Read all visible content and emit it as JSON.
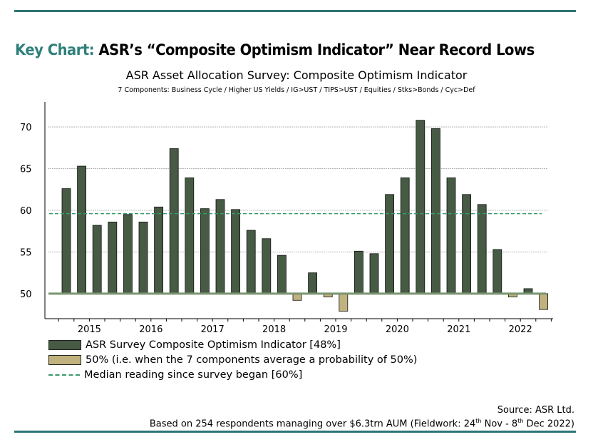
{
  "header": {
    "prefix": "Key Chart:",
    "title": "ASR’s “Composite Optimism Indicator” Near Record Lows"
  },
  "chart_data": {
    "type": "bar",
    "title": "ASR Asset Allocation Survey: Composite Optimism Indicator",
    "subtitle": "7 Components: Business Cycle / Higher US Yields / IG>UST / TIPS>UST / Equities / Stks>Bonds / Cyc>Def",
    "baseline": 50,
    "ylim": [
      47,
      73
    ],
    "yticks": [
      50,
      55,
      60,
      65,
      70
    ],
    "year_labels": [
      "2015",
      "2016",
      "2017",
      "2018",
      "2019",
      "2020",
      "2021",
      "2022"
    ],
    "bars_per_year": 4,
    "values": [
      62.6,
      65.3,
      58.2,
      58.6,
      59.5,
      58.6,
      60.4,
      67.4,
      63.9,
      60.2,
      61.3,
      60.1,
      57.6,
      56.6,
      54.6,
      49.2,
      52.5,
      49.6,
      47.9,
      55.1,
      54.8,
      61.9,
      63.9,
      70.8,
      69.8,
      63.9,
      61.9,
      60.7,
      55.3,
      49.6,
      50.6,
      48.1
    ],
    "median": 59.6,
    "grid": true,
    "colors": {
      "above": "#465a44",
      "below": "#c0b27e",
      "baseline": "#7a9470",
      "median": "#3a9a6a",
      "rule": "#2e7474"
    },
    "legend": [
      {
        "label": "ASR Survey Composite Optimism Indicator [48%]"
      },
      {
        "label": "50% (i.e. when the 7 components average a probability of 50%)"
      },
      {
        "label": "Median reading since survey began [60%]"
      }
    ],
    "legend_placement": "bottom-left"
  },
  "footer": {
    "source": "Source: ASR Ltd.",
    "basis_pre": "Based on 254 respondents managing over $6.3trn AUM (Fieldwork: 24",
    "sup1": "th",
    "mid": " Nov - 8",
    "sup2": "th",
    "post": " Dec 2022)"
  }
}
